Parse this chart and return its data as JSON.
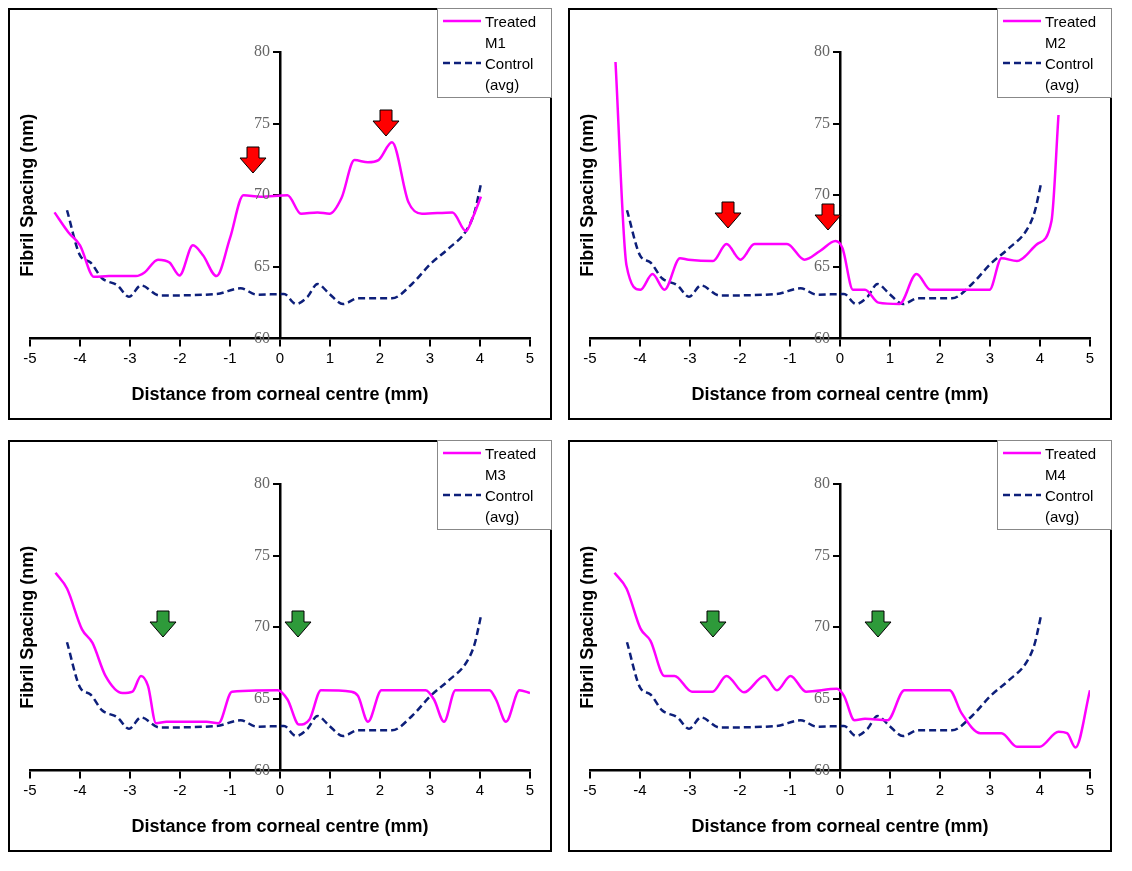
{
  "chart_data": [
    {
      "type": "line",
      "xlabel": "Distance from corneal centre (mm)",
      "ylabel": "Fibril Spacing (nm)",
      "xlim": [
        -5,
        5
      ],
      "xticks": [
        -5,
        -4,
        -3,
        -2,
        -1,
        0,
        1,
        2,
        3,
        4,
        5
      ],
      "ylim": [
        60,
        80
      ],
      "yticks": [
        60,
        65,
        70,
        75,
        80
      ],
      "grid": false,
      "legend": "top right",
      "marker": "none",
      "series": [
        {
          "name": "Treated M1",
          "color": "#ff00ff",
          "line_style": "solid",
          "x": [
            -4.51,
            -4.23,
            -4.0,
            -3.72,
            -3.42,
            -2.88,
            -2.71,
            -2.44,
            -2.21,
            -2.01,
            -1.74,
            -1.54,
            -1.27,
            -1.0,
            -0.73,
            -0.39,
            0.15,
            0.42,
            0.75,
            0.99,
            1.23,
            1.49,
            1.76,
            1.97,
            2.24,
            2.57,
            2.84,
            3.45,
            3.72,
            3.85,
            4.02
          ],
          "values": [
            68.8,
            67.4,
            66.5,
            64.3,
            64.35,
            64.35,
            64.6,
            65.5,
            65.3,
            64.4,
            66.5,
            65.8,
            64.35,
            67.0,
            70.0,
            69.9,
            70.0,
            68.7,
            68.8,
            68.7,
            69.8,
            72.45,
            72.3,
            72.45,
            73.7,
            69.5,
            68.7,
            68.8,
            67.5,
            68.4,
            69.9
          ]
        },
        {
          "name": "Control (avg)",
          "color": "#0d1f7a",
          "line_style": "dashed",
          "x": [
            -4.26,
            -4.0,
            -3.79,
            -3.56,
            -3.25,
            -3.02,
            -2.78,
            -2.41,
            -1.27,
            -0.79,
            -0.46,
            0.08,
            0.32,
            0.55,
            0.75,
            0.99,
            1.26,
            1.56,
            2.24,
            2.64,
            3.01,
            3.38,
            3.72,
            3.89,
            4.02
          ],
          "values": [
            68.95,
            65.8,
            65.3,
            64.2,
            63.7,
            62.9,
            63.7,
            63.0,
            63.1,
            63.5,
            63.05,
            63.1,
            62.4,
            62.9,
            63.8,
            63.1,
            62.4,
            62.8,
            62.8,
            63.8,
            65.2,
            66.3,
            67.5,
            68.8,
            70.8
          ]
        }
      ]
    },
    {
      "type": "line",
      "xlabel": "Distance from corneal centre (mm)",
      "ylabel": "Fibril Spacing (nm)",
      "xlim": [
        -5,
        5
      ],
      "xticks": [
        -5,
        -4,
        -3,
        -2,
        -1,
        0,
        1,
        2,
        3,
        4,
        5
      ],
      "ylim": [
        60,
        80
      ],
      "yticks": [
        60,
        65,
        70,
        75,
        80
      ],
      "grid": false,
      "legend": "top right",
      "marker": "none",
      "series": [
        {
          "name": "Treated M2",
          "color": "#ff00ff",
          "line_style": "solid",
          "x": [
            -4.49,
            -4.27,
            -3.99,
            -3.75,
            -3.51,
            -3.2,
            -3.03,
            -2.54,
            -2.27,
            -1.99,
            -1.71,
            -1.06,
            -0.71,
            -0.4,
            -0.09,
            0.05,
            0.26,
            0.5,
            0.77,
            1.19,
            1.53,
            1.81,
            2.78,
            2.99,
            3.23,
            3.54,
            3.95,
            4.23,
            4.37
          ],
          "values": [
            79.3,
            65.1,
            63.4,
            64.5,
            63.4,
            65.6,
            65.5,
            65.4,
            66.6,
            65.5,
            66.6,
            66.6,
            65.5,
            66.1,
            66.8,
            66.3,
            63.4,
            63.4,
            62.5,
            62.4,
            64.5,
            63.4,
            63.4,
            63.4,
            65.6,
            65.4,
            66.6,
            68.2,
            75.6
          ]
        },
        {
          "name": "Control (avg)",
          "color": "#0d1f7a",
          "line_style": "dashed",
          "x": [
            -4.26,
            -4.0,
            -3.79,
            -3.56,
            -3.25,
            -3.02,
            -2.78,
            -2.41,
            -1.27,
            -0.79,
            -0.46,
            0.08,
            0.32,
            0.55,
            0.75,
            0.99,
            1.26,
            1.56,
            2.24,
            2.64,
            3.01,
            3.38,
            3.72,
            3.89,
            4.02
          ],
          "values": [
            68.95,
            65.8,
            65.3,
            64.2,
            63.7,
            62.9,
            63.7,
            63.0,
            63.1,
            63.5,
            63.05,
            63.1,
            62.4,
            62.9,
            63.8,
            63.1,
            62.4,
            62.8,
            62.8,
            63.8,
            65.2,
            66.3,
            67.5,
            68.8,
            70.8
          ]
        }
      ]
    },
    {
      "type": "line",
      "xlabel": "Distance from corneal centre (mm)",
      "ylabel": "Fibril Spacing (nm)",
      "xlim": [
        -5,
        5
      ],
      "xticks": [
        -5,
        -4,
        -3,
        -2,
        -1,
        0,
        1,
        2,
        3,
        4,
        5
      ],
      "ylim": [
        60,
        80
      ],
      "yticks": [
        60,
        65,
        70,
        75,
        80
      ],
      "grid": false,
      "legend": "top right",
      "marker": "none",
      "series": [
        {
          "name": "Treated M3",
          "color": "#ff00ff",
          "line_style": "solid",
          "x": [
            -4.49,
            -4.26,
            -3.96,
            -3.75,
            -3.49,
            -3.15,
            -2.95,
            -2.78,
            -2.64,
            -2.48,
            -2.27,
            -1.47,
            -1.23,
            -0.96,
            -0.05,
            0.15,
            0.38,
            0.59,
            0.82,
            1.43,
            1.56,
            1.76,
            2.03,
            2.91,
            3.08,
            3.28,
            3.51,
            4.19,
            4.32,
            4.52,
            4.79,
            5.0
          ],
          "values": [
            73.8,
            72.7,
            69.85,
            68.9,
            66.6,
            65.4,
            65.5,
            66.6,
            65.9,
            63.3,
            63.4,
            63.4,
            63.3,
            65.5,
            65.6,
            64.95,
            63.2,
            63.55,
            65.6,
            65.5,
            65.2,
            63.4,
            65.6,
            65.6,
            64.95,
            63.4,
            65.6,
            65.6,
            64.95,
            63.4,
            65.6,
            65.4
          ]
        },
        {
          "name": "Control (avg)",
          "color": "#0d1f7a",
          "line_style": "dashed",
          "x": [
            -4.26,
            -4.0,
            -3.79,
            -3.56,
            -3.25,
            -3.02,
            -2.78,
            -2.41,
            -1.27,
            -0.79,
            -0.46,
            0.08,
            0.32,
            0.55,
            0.75,
            0.99,
            1.26,
            1.56,
            2.24,
            2.64,
            3.01,
            3.38,
            3.72,
            3.89,
            4.02
          ],
          "values": [
            68.95,
            65.8,
            65.3,
            64.2,
            63.7,
            62.9,
            63.7,
            63.0,
            63.1,
            63.5,
            63.05,
            63.1,
            62.4,
            62.9,
            63.8,
            63.1,
            62.4,
            62.8,
            62.8,
            63.8,
            65.2,
            66.3,
            67.5,
            68.8,
            70.8
          ]
        }
      ]
    },
    {
      "type": "line",
      "xlabel": "Distance from corneal centre (mm)",
      "ylabel": "Fibril Spacing (nm)",
      "xlim": [
        -5,
        5
      ],
      "xticks": [
        -5,
        -4,
        -3,
        -2,
        -1,
        0,
        1,
        2,
        3,
        4,
        5
      ],
      "ylim": [
        60,
        80
      ],
      "yticks": [
        60,
        65,
        70,
        75,
        80
      ],
      "grid": false,
      "legend": "top right",
      "marker": "none",
      "series": [
        {
          "name": "Treated M4",
          "color": "#ff00ff",
          "line_style": "solid",
          "x": [
            -4.51,
            -4.27,
            -3.99,
            -3.79,
            -3.51,
            -3.31,
            -2.96,
            -2.55,
            -2.27,
            -1.92,
            -1.51,
            -1.26,
            -0.99,
            -0.68,
            -0.06,
            0.08,
            0.29,
            0.5,
            0.95,
            1.29,
            2.19,
            2.43,
            2.81,
            3.23,
            3.54,
            3.99,
            4.37,
            4.54,
            4.71,
            5.0
          ],
          "values": [
            73.8,
            72.7,
            69.9,
            69.05,
            66.6,
            66.6,
            65.5,
            65.5,
            66.6,
            65.45,
            66.6,
            65.6,
            66.6,
            65.5,
            65.7,
            65.2,
            63.5,
            63.6,
            63.5,
            65.6,
            65.6,
            64.0,
            62.6,
            62.6,
            61.65,
            61.65,
            62.7,
            62.6,
            61.6,
            65.6
          ]
        },
        {
          "name": "Control (avg)",
          "color": "#0d1f7a",
          "line_style": "dashed",
          "x": [
            -4.26,
            -4.0,
            -3.79,
            -3.56,
            -3.25,
            -3.02,
            -2.78,
            -2.41,
            -1.27,
            -0.79,
            -0.46,
            0.08,
            0.32,
            0.55,
            0.75,
            0.99,
            1.26,
            1.56,
            2.24,
            2.64,
            3.01,
            3.38,
            3.72,
            3.89,
            4.02
          ],
          "values": [
            68.95,
            65.8,
            65.3,
            64.2,
            63.7,
            62.9,
            63.7,
            63.0,
            63.1,
            63.5,
            63.05,
            63.1,
            62.4,
            62.9,
            63.8,
            63.1,
            62.4,
            62.8,
            62.8,
            63.8,
            65.2,
            66.3,
            67.5,
            68.8,
            70.8
          ]
        }
      ]
    }
  ]
}
